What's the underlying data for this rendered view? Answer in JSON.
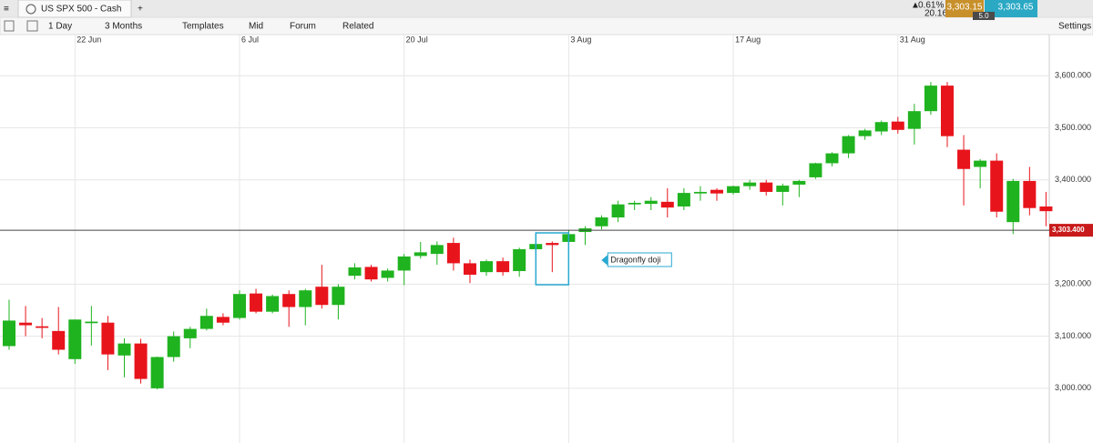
{
  "toolbar": {
    "tab": "US SPX 500 - Cash",
    "interval": "1 Day",
    "range": "3 Months",
    "templates": "Templates",
    "price_mode": "Mid",
    "forum": "Forum",
    "related": "Related",
    "settings": "Settings",
    "change_pct": "0.61%",
    "change_abs": "20.16",
    "sell": "3,303.15",
    "buy": "3,303.65",
    "spread": "5.0"
  },
  "chart_data": {
    "type": "candlestick",
    "annotation": "Dragonfly doji",
    "categories": [
      null,
      null,
      null,
      null,
      "22 Jun",
      null,
      null,
      null,
      null,
      null,
      null,
      null,
      null,
      null,
      "6 Jul",
      null,
      null,
      null,
      null,
      null,
      null,
      null,
      null,
      null,
      "20 Jul",
      null,
      null,
      null,
      null,
      null,
      null,
      null,
      null,
      null,
      "3 Aug",
      null,
      null,
      null,
      null,
      null,
      null,
      null,
      null,
      null,
      "17 Aug",
      null,
      null,
      null,
      null,
      null,
      null,
      null,
      null,
      null,
      "31 Aug",
      null,
      null,
      null,
      null,
      null,
      null,
      null,
      null,
      null
    ],
    "open": [
      3081,
      3126,
      3119,
      3110,
      3056,
      3125,
      3126,
      3063,
      3086,
      3000,
      3060,
      3096,
      3114,
      3137,
      3135,
      3182,
      3147,
      3181,
      3156,
      3195,
      3160,
      3216,
      3233,
      3212,
      3226,
      3254,
      3258,
      3279,
      3240,
      3223,
      3244,
      3225,
      3267,
      3279,
      3281,
      3300,
      3311,
      3328,
      3353,
      3354,
      3358,
      3349,
      3374,
      3381,
      3375,
      3388,
      3395,
      3377,
      3391,
      3405,
      3432,
      3451,
      3484,
      3493,
      3512,
      3498,
      3532,
      3581,
      3458,
      3425,
      3437,
      3319,
      3398,
      3349
    ],
    "high": [
      3170,
      3158,
      3135,
      3156,
      3132,
      3158,
      3139,
      3096,
      3095,
      3061,
      3109,
      3118,
      3153,
      3144,
      3188,
      3191,
      3180,
      3188,
      3191,
      3237,
      3200,
      3240,
      3237,
      3230,
      3258,
      3281,
      3282,
      3289,
      3247,
      3247,
      3251,
      3270,
      3298,
      3282,
      3304,
      3311,
      3332,
      3360,
      3360,
      3367,
      3384,
      3384,
      3388,
      3384,
      3389,
      3400,
      3400,
      3393,
      3400,
      3433,
      3453,
      3486,
      3498,
      3514,
      3521,
      3546,
      3588,
      3588,
      3486,
      3440,
      3451,
      3402,
      3425,
      3377
    ],
    "low": [
      3074,
      3100,
      3096,
      3065,
      3047,
      3082,
      3035,
      3021,
      3009,
      2998,
      3051,
      3077,
      3111,
      3121,
      3132,
      3144,
      3144,
      3118,
      3121,
      3153,
      3132,
      3209,
      3205,
      3205,
      3198,
      3249,
      3237,
      3226,
      3202,
      3216,
      3216,
      3214,
      3258,
      3223,
      3279,
      3275,
      3305,
      3319,
      3342,
      3342,
      3328,
      3342,
      3360,
      3360,
      3372,
      3381,
      3370,
      3351,
      3367,
      3402,
      3426,
      3442,
      3477,
      3486,
      3489,
      3468,
      3525,
      3463,
      3351,
      3384,
      3328,
      3296,
      3332,
      3311
    ],
    "close": [
      3130,
      3121,
      3116,
      3074,
      3132,
      3128,
      3065,
      3086,
      3018,
      3060,
      3100,
      3114,
      3139,
      3126,
      3181,
      3147,
      3177,
      3156,
      3188,
      3160,
      3195,
      3232,
      3209,
      3226,
      3253,
      3261,
      3275,
      3240,
      3218,
      3244,
      3223,
      3267,
      3277,
      3275,
      3296,
      3307,
      3328,
      3353,
      3356,
      3360,
      3347,
      3375,
      3377,
      3374,
      3388,
      3395,
      3377,
      3389,
      3398,
      3432,
      3451,
      3484,
      3495,
      3511,
      3496,
      3532,
      3581,
      3484,
      3421,
      3437,
      3339,
      3398,
      3346,
      3340
    ],
    "up_color": "#1fb31f",
    "down_color": "#e8141c",
    "ylim": [
      2895,
      3679
    ],
    "yticks": [
      {
        "value": 3000,
        "label": "3,000.000"
      },
      {
        "value": 3100,
        "label": "3,100.000"
      },
      {
        "value": 3200,
        "label": "3,200.000"
      },
      {
        "value": 3400,
        "label": "3,400.000"
      },
      {
        "value": 3500,
        "label": "3,500.000"
      },
      {
        "value": 3600,
        "label": "3,600.000"
      }
    ],
    "price_line": {
      "value": 3303.4,
      "label": "3,303.400"
    },
    "grid": true
  }
}
